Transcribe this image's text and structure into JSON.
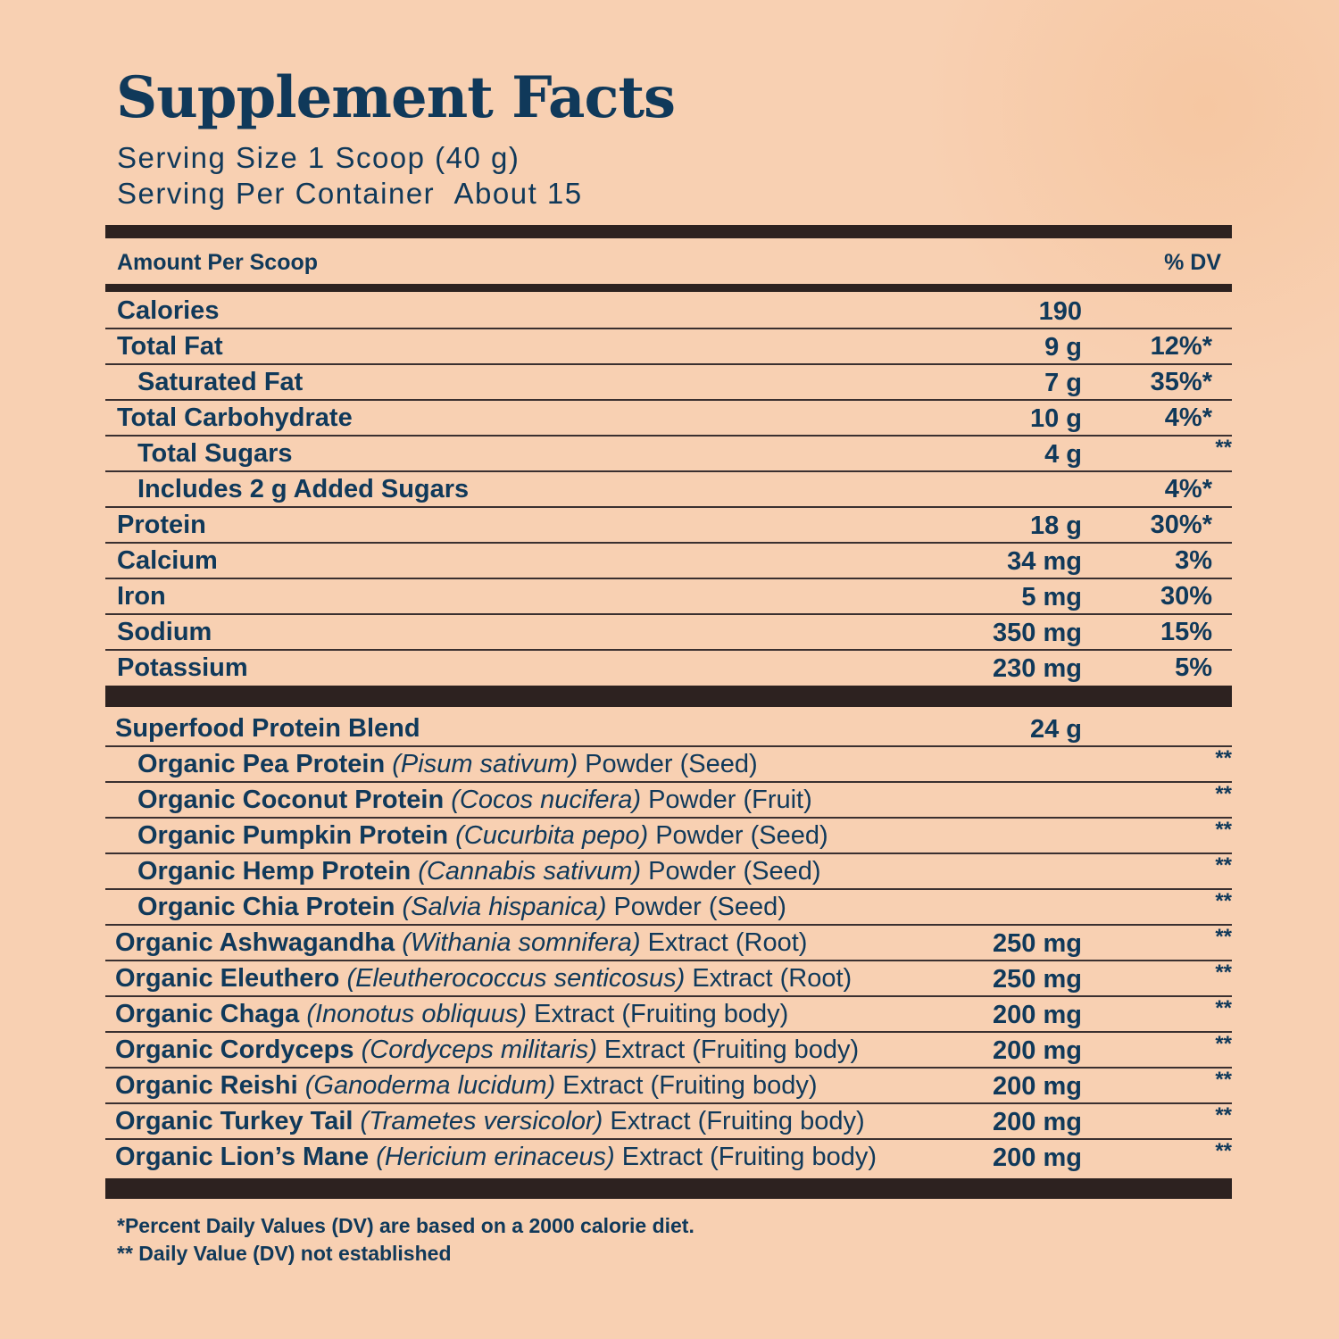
{
  "header": {
    "title": "Supplement Facts",
    "serving_size": "Serving Size 1 Scoop (40 g)",
    "servings_label": "Serving Per Container",
    "servings_value": "About 15"
  },
  "table": {
    "amount_header": "Amount Per Scoop",
    "dv_header": "% DV",
    "nutrients": [
      {
        "name": "Calories",
        "amount": "190"
      },
      {
        "name": "Total Fat",
        "amount": "9 g",
        "dv": "12%*",
        "sub": [
          {
            "name": "Saturated Fat",
            "amount": "7 g",
            "dv": "35%*"
          }
        ]
      },
      {
        "name": "Total Carbohydrate",
        "amount": "10 g",
        "dv": "4%*",
        "sub": [
          {
            "name": "Total Sugars",
            "amount": "4 g",
            "dv": "**"
          },
          {
            "name": "Includes 2 g Added Sugars",
            "dv": "4%*"
          }
        ]
      },
      {
        "name": "Protein",
        "amount": "18 g",
        "dv": "30%*"
      },
      {
        "name": "Calcium",
        "amount": "34 mg",
        "dv": "3%"
      },
      {
        "name": "Iron",
        "amount": "5 mg",
        "dv": "30%"
      },
      {
        "name": "Sodium",
        "amount": "350 mg",
        "dv": "15%"
      },
      {
        "name": "Potassium",
        "amount": "230 mg",
        "dv": "5%"
      }
    ],
    "ingredients": [
      {
        "name": "Superfood Protein Blend",
        "amount": "24 g",
        "sub": [
          {
            "name": "Organic Pea Protein",
            "latin": "(Pisum sativum)",
            "part": "Powder (Seed)",
            "dv": "**"
          },
          {
            "name": "Organic Coconut Protein",
            "latin": "(Cocos nucifera)",
            "part": "Powder (Fruit)",
            "dv": "**"
          },
          {
            "name": "Organic Pumpkin Protein",
            "latin": "(Cucurbita pepo)",
            "part": "Powder (Seed)",
            "dv": "**"
          },
          {
            "name": "Organic Hemp Protein",
            "latin": "(Cannabis sativum)",
            "part": "Powder (Seed)",
            "dv": "**"
          },
          {
            "name": "Organic Chia Protein",
            "latin": "(Salvia hispanica)",
            "part": "Powder (Seed)",
            "dv": "**"
          }
        ]
      },
      {
        "name": "Organic Ashwagandha",
        "latin": "(Withania somnifera)",
        "part": "Extract (Root)",
        "amount": "250 mg",
        "dv": "**"
      },
      {
        "name": "Organic Eleuthero",
        "latin": "(Eleutherococcus senticosus)",
        "part": "Extract (Root)",
        "amount": "250 mg",
        "dv": "**"
      },
      {
        "name": "Organic Chaga",
        "latin": "(Inonotus obliquus)",
        "part": "Extract (Fruiting body)",
        "amount": "200 mg",
        "dv": "**"
      },
      {
        "name": "Organic Cordyceps",
        "latin": "(Cordyceps militaris)",
        "part": "Extract (Fruiting body)",
        "amount": "200 mg",
        "dv": "**"
      },
      {
        "name": "Organic Reishi",
        "latin": "(Ganoderma lucidum)",
        "part": "Extract (Fruiting body)",
        "amount": "200 mg",
        "dv": "**"
      },
      {
        "name": "Organic Turkey Tail",
        "latin": "(Trametes versicolor)",
        "part": "Extract (Fruiting body)",
        "amount": "200 mg",
        "dv": "**"
      },
      {
        "name": "Organic Lion’s Mane",
        "latin": "(Hericium erinaceus)",
        "part": "Extract (Fruiting body)",
        "amount": "200 mg",
        "dv": "**"
      }
    ]
  },
  "footnotes": [
    "*Percent Daily Values (DV) are based on a 2000 calorie diet.",
    "** Daily Value (DV) not established"
  ]
}
